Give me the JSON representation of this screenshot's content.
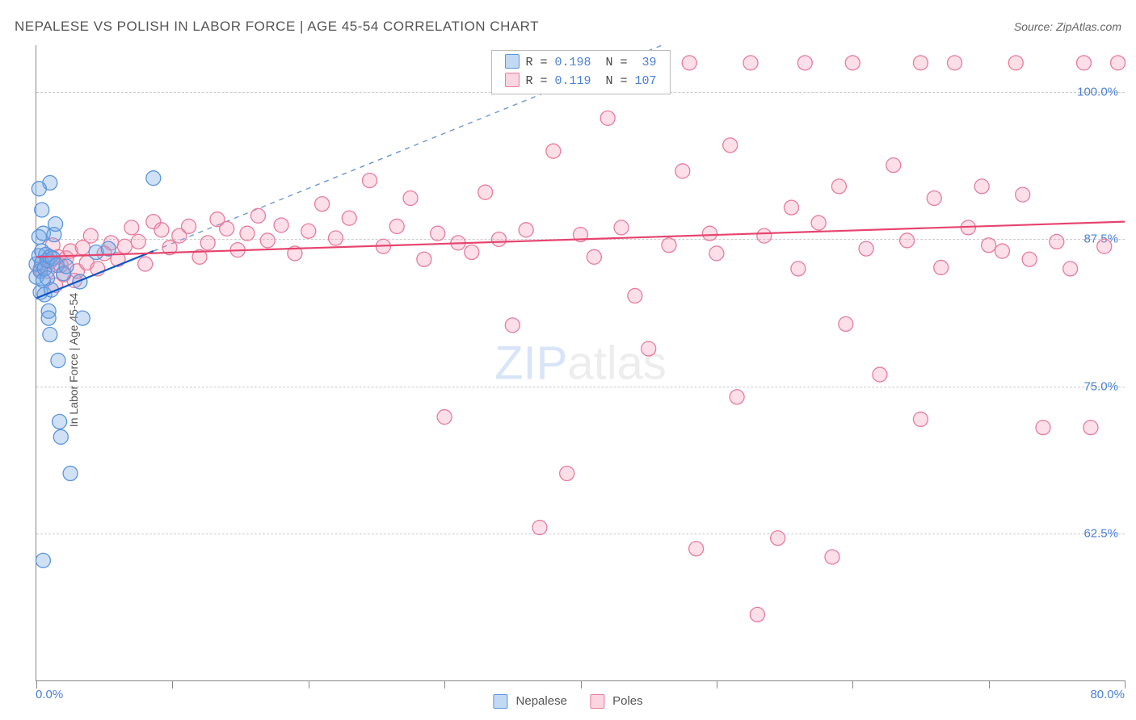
{
  "title": "NEPALESE VS POLISH IN LABOR FORCE | AGE 45-54 CORRELATION CHART",
  "source_label": "Source: ZipAtlas.com",
  "ylabel": "In Labor Force | Age 45-54",
  "watermark_strong": "ZIP",
  "watermark_light": "atlas",
  "chart": {
    "type": "scatter",
    "xlim": [
      0,
      80
    ],
    "ylim": [
      50,
      104
    ],
    "x_tick_step": 10,
    "y_gridlines": [
      62.5,
      75.0,
      87.5,
      100.0
    ],
    "y_tick_labels": [
      "62.5%",
      "75.0%",
      "87.5%",
      "100.0%"
    ],
    "x_min_label": "0.0%",
    "x_max_label": "80.0%",
    "background_color": "#ffffff",
    "grid_color": "#cccccc",
    "axis_color": "#888888"
  },
  "series": [
    {
      "name": "Nepalese",
      "fill": "rgba(120,170,230,0.35)",
      "stroke": "#5a95dd",
      "marker_radius": 9,
      "R": "0.198",
      "N": "39",
      "trend": {
        "x1": 0,
        "y1": 82.5,
        "x2": 8.6,
        "y2": 86.5,
        "color": "#1156c4",
        "width": 2.2
      },
      "dashed_extension": {
        "x1": 8.6,
        "y1": 86.5,
        "x2": 46,
        "y2": 104,
        "color": "#6a95d8"
      },
      "points": [
        [
          0.0,
          84.3
        ],
        [
          0.0,
          85.4
        ],
        [
          0.2,
          86.1
        ],
        [
          0.2,
          87.7
        ],
        [
          0.3,
          84.8
        ],
        [
          0.3,
          83.0
        ],
        [
          0.4,
          85.5
        ],
        [
          0.4,
          86.5
        ],
        [
          0.5,
          88.0
        ],
        [
          0.5,
          84.0
        ],
        [
          0.6,
          85.0
        ],
        [
          0.6,
          82.8
        ],
        [
          0.7,
          86.2
        ],
        [
          0.8,
          85.7
        ],
        [
          0.8,
          84.2
        ],
        [
          0.9,
          81.4
        ],
        [
          0.9,
          80.8
        ],
        [
          1.0,
          79.4
        ],
        [
          1.0,
          92.3
        ],
        [
          1.0,
          86.0
        ],
        [
          1.1,
          83.2
        ],
        [
          1.2,
          85.9
        ],
        [
          1.3,
          87.9
        ],
        [
          1.4,
          88.8
        ],
        [
          1.5,
          85.3
        ],
        [
          1.6,
          77.2
        ],
        [
          1.7,
          72.0
        ],
        [
          1.8,
          70.7
        ],
        [
          2.0,
          84.6
        ],
        [
          2.5,
          67.6
        ],
        [
          0.2,
          91.8
        ],
        [
          0.4,
          90.0
        ],
        [
          2.2,
          85.2
        ],
        [
          3.2,
          83.9
        ],
        [
          3.4,
          80.8
        ],
        [
          4.4,
          86.4
        ],
        [
          5.3,
          86.7
        ],
        [
          8.6,
          92.7
        ],
        [
          0.5,
          60.2
        ]
      ]
    },
    {
      "name": "Poles",
      "fill": "rgba(245,150,180,0.30)",
      "stroke": "#e77c9d",
      "marker_radius": 9,
      "R": "0.119",
      "N": "107",
      "trend": {
        "x1": 0,
        "y1": 86.0,
        "x2": 80,
        "y2": 89.0,
        "color": "#e6446f",
        "width": 2.2
      },
      "points": [
        [
          0.3,
          85.0
        ],
        [
          0.8,
          84.8
        ],
        [
          1.0,
          85.6
        ],
        [
          1.2,
          87.0
        ],
        [
          1.4,
          83.6
        ],
        [
          1.6,
          86.0
        ],
        [
          1.8,
          85.3
        ],
        [
          2.0,
          84.5
        ],
        [
          2.2,
          85.9
        ],
        [
          2.5,
          86.5
        ],
        [
          2.8,
          84.0
        ],
        [
          3.0,
          84.8
        ],
        [
          3.4,
          86.8
        ],
        [
          3.7,
          85.5
        ],
        [
          4.0,
          87.8
        ],
        [
          4.5,
          85.0
        ],
        [
          5.0,
          86.3
        ],
        [
          5.5,
          87.2
        ],
        [
          6.0,
          85.8
        ],
        [
          6.5,
          86.9
        ],
        [
          7.0,
          88.5
        ],
        [
          7.5,
          87.3
        ],
        [
          8.0,
          85.4
        ],
        [
          8.6,
          89.0
        ],
        [
          9.2,
          88.3
        ],
        [
          9.8,
          86.8
        ],
        [
          10.5,
          87.8
        ],
        [
          11.2,
          88.6
        ],
        [
          12.0,
          86.0
        ],
        [
          12.6,
          87.2
        ],
        [
          13.3,
          89.2
        ],
        [
          14.0,
          88.4
        ],
        [
          14.8,
          86.6
        ],
        [
          15.5,
          88.0
        ],
        [
          16.3,
          89.5
        ],
        [
          17.0,
          87.4
        ],
        [
          18.0,
          88.7
        ],
        [
          19.0,
          86.3
        ],
        [
          20.0,
          88.2
        ],
        [
          21.0,
          90.5
        ],
        [
          22.0,
          87.6
        ],
        [
          23.0,
          89.3
        ],
        [
          24.5,
          92.5
        ],
        [
          25.5,
          86.9
        ],
        [
          26.5,
          88.6
        ],
        [
          27.5,
          91.0
        ],
        [
          28.5,
          85.8
        ],
        [
          29.5,
          88.0
        ],
        [
          30.0,
          72.4
        ],
        [
          31.0,
          87.2
        ],
        [
          32.0,
          86.4
        ],
        [
          33.0,
          91.5
        ],
        [
          34.0,
          87.5
        ],
        [
          35.0,
          80.2
        ],
        [
          36.0,
          88.3
        ],
        [
          37.0,
          63.0
        ],
        [
          38.0,
          95.0
        ],
        [
          39.0,
          67.6
        ],
        [
          40.0,
          87.9
        ],
        [
          41.0,
          86.0
        ],
        [
          42.0,
          97.8
        ],
        [
          43.0,
          88.5
        ],
        [
          44.0,
          82.7
        ],
        [
          45.0,
          78.2
        ],
        [
          46.5,
          87.0
        ],
        [
          47.5,
          93.3
        ],
        [
          48.0,
          102.5
        ],
        [
          48.5,
          61.2
        ],
        [
          49.5,
          88.0
        ],
        [
          50.0,
          86.3
        ],
        [
          51.0,
          95.5
        ],
        [
          51.5,
          74.1
        ],
        [
          52.5,
          102.5
        ],
        [
          53.0,
          55.6
        ],
        [
          53.5,
          87.8
        ],
        [
          54.5,
          62.1
        ],
        [
          55.5,
          90.2
        ],
        [
          56.0,
          85.0
        ],
        [
          56.5,
          102.5
        ],
        [
          57.5,
          88.9
        ],
        [
          58.5,
          60.5
        ],
        [
          59.0,
          92.0
        ],
        [
          59.5,
          80.3
        ],
        [
          60.0,
          102.5
        ],
        [
          61.0,
          86.7
        ],
        [
          62.0,
          76.0
        ],
        [
          63.0,
          93.8
        ],
        [
          64.0,
          87.4
        ],
        [
          65.0,
          72.2
        ],
        [
          66.0,
          91.0
        ],
        [
          66.5,
          85.1
        ],
        [
          67.5,
          102.5
        ],
        [
          68.5,
          88.5
        ],
        [
          69.5,
          92.0
        ],
        [
          70.0,
          87.0
        ],
        [
          71.0,
          86.5
        ],
        [
          72.0,
          102.5
        ],
        [
          73.0,
          85.8
        ],
        [
          74.0,
          71.5
        ],
        [
          75.0,
          87.3
        ],
        [
          76.0,
          85.0
        ],
        [
          77.0,
          102.5
        ],
        [
          77.5,
          71.5
        ],
        [
          72.5,
          91.3
        ],
        [
          79.5,
          102.5
        ],
        [
          78.5,
          86.9
        ],
        [
          65.0,
          102.5
        ]
      ]
    }
  ],
  "legend_bottom": [
    "Nepalese",
    "Poles"
  ],
  "legend_colors": [
    {
      "fill": "rgba(120,170,230,0.45)",
      "stroke": "#5a95dd"
    },
    {
      "fill": "rgba(245,150,180,0.40)",
      "stroke": "#e77c9d"
    }
  ]
}
